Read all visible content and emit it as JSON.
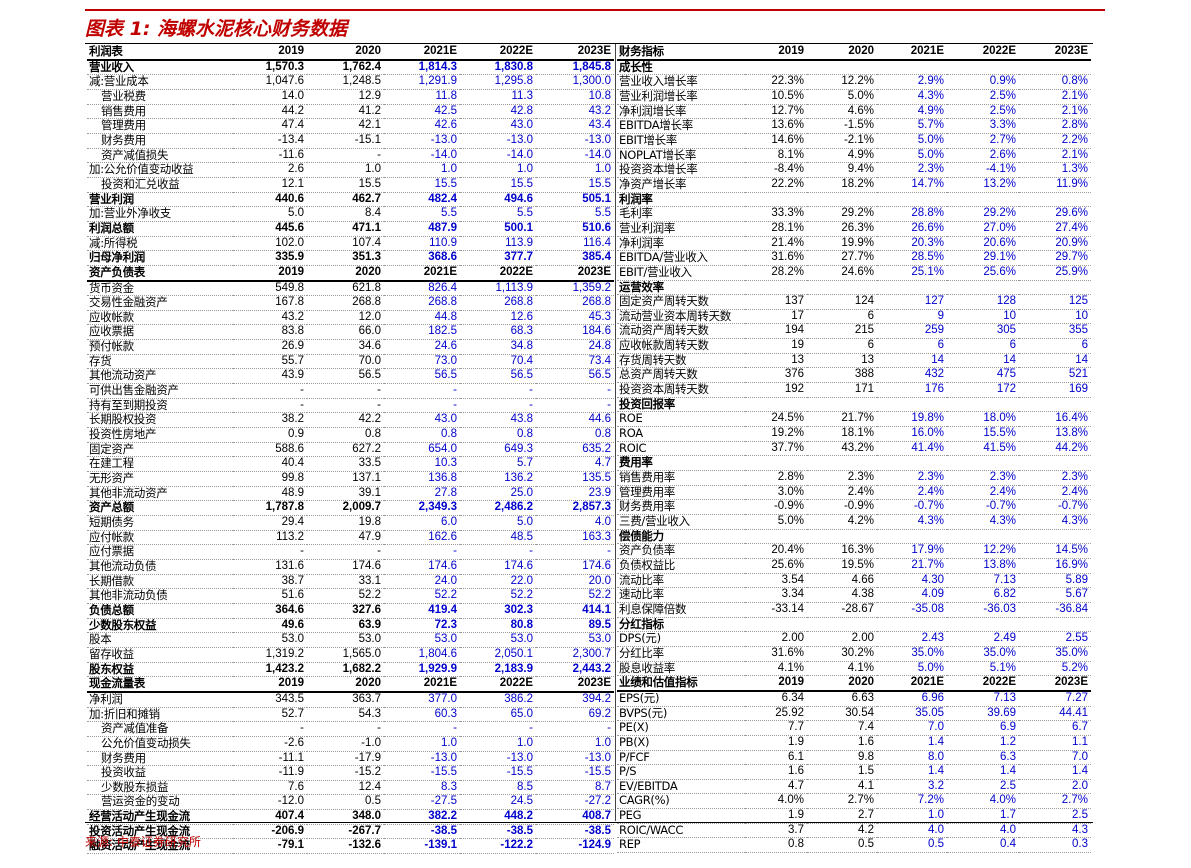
{
  "title": "图表 1: 海螺水泥核心财务数据",
  "source": "来源: 中泰证券研究所",
  "left_rows": [
    {
      "t": "hd",
      "c": [
        "利润表",
        "2019",
        "2020",
        "2021E",
        "2022E",
        "2023E"
      ]
    },
    {
      "t": "b",
      "c": [
        "营业收入",
        "1,570.3",
        "1,762.4",
        "1,814.3",
        "1,830.8",
        "1,845.8"
      ]
    },
    {
      "t": "",
      "c": [
        "减:营业成本",
        "1,047.6",
        "1,248.5",
        "1,291.9",
        "1,295.8",
        "1,300.0"
      ]
    },
    {
      "t": "ind",
      "c": [
        "营业税费",
        "14.0",
        "12.9",
        "11.8",
        "11.3",
        "10.8"
      ]
    },
    {
      "t": "ind",
      "c": [
        "销售费用",
        "44.2",
        "41.2",
        "42.5",
        "42.8",
        "43.2"
      ]
    },
    {
      "t": "ind",
      "c": [
        "管理费用",
        "47.4",
        "42.1",
        "42.6",
        "43.0",
        "43.4"
      ]
    },
    {
      "t": "ind",
      "c": [
        "财务费用",
        "-13.4",
        "-15.1",
        "-13.0",
        "-13.0",
        "-13.0"
      ]
    },
    {
      "t": "ind",
      "c": [
        "资产减值损失",
        "-11.6",
        "-",
        "-14.0",
        "-14.0",
        "-14.0"
      ]
    },
    {
      "t": "",
      "c": [
        "加:公允价值变动收益",
        "2.6",
        "1.0",
        "1.0",
        "1.0",
        "1.0"
      ]
    },
    {
      "t": "ind",
      "c": [
        "投资和汇兑收益",
        "12.1",
        "15.5",
        "15.5",
        "15.5",
        "15.5"
      ]
    },
    {
      "t": "b",
      "c": [
        "营业利润",
        "440.6",
        "462.7",
        "482.4",
        "494.6",
        "505.1"
      ]
    },
    {
      "t": "",
      "c": [
        "加:营业外净收支",
        "5.0",
        "8.4",
        "5.5",
        "5.5",
        "5.5"
      ]
    },
    {
      "t": "b",
      "c": [
        "利润总额",
        "445.6",
        "471.1",
        "487.9",
        "500.1",
        "510.6"
      ]
    },
    {
      "t": "",
      "c": [
        "减:所得税",
        "102.0",
        "107.4",
        "110.9",
        "113.9",
        "116.4"
      ]
    },
    {
      "t": "b",
      "c": [
        "归母净利润",
        "335.9",
        "351.3",
        "368.6",
        "377.7",
        "385.4"
      ]
    },
    {
      "t": "hd",
      "c": [
        "资产负债表",
        "2019",
        "2020",
        "2021E",
        "2022E",
        "2023E"
      ]
    },
    {
      "t": "",
      "c": [
        "货币资金",
        "549.8",
        "621.8",
        "826.4",
        "1,113.9",
        "1,359.2"
      ]
    },
    {
      "t": "",
      "c": [
        "交易性金融资产",
        "167.8",
        "268.8",
        "268.8",
        "268.8",
        "268.8"
      ]
    },
    {
      "t": "",
      "c": [
        "应收帐款",
        "43.2",
        "12.0",
        "44.8",
        "12.6",
        "45.3"
      ]
    },
    {
      "t": "",
      "c": [
        "应收票据",
        "83.8",
        "66.0",
        "182.5",
        "68.3",
        "184.6"
      ]
    },
    {
      "t": "",
      "c": [
        "预付帐款",
        "26.9",
        "34.6",
        "24.6",
        "34.8",
        "24.8"
      ]
    },
    {
      "t": "",
      "c": [
        "存货",
        "55.7",
        "70.0",
        "73.0",
        "70.4",
        "73.4"
      ]
    },
    {
      "t": "",
      "c": [
        "其他流动资产",
        "43.9",
        "56.5",
        "56.5",
        "56.5",
        "56.5"
      ]
    },
    {
      "t": "",
      "c": [
        "可供出售金融资产",
        "-",
        "-",
        "-",
        "-",
        "-"
      ]
    },
    {
      "t": "",
      "c": [
        "持有至到期投资",
        "-",
        "-",
        "-",
        "-",
        "-"
      ]
    },
    {
      "t": "",
      "c": [
        "长期股权投资",
        "38.2",
        "42.2",
        "43.0",
        "43.8",
        "44.6"
      ]
    },
    {
      "t": "",
      "c": [
        "投资性房地产",
        "0.9",
        "0.8",
        "0.8",
        "0.8",
        "0.8"
      ]
    },
    {
      "t": "",
      "c": [
        "固定资产",
        "588.6",
        "627.2",
        "654.0",
        "649.3",
        "635.2"
      ]
    },
    {
      "t": "",
      "c": [
        "在建工程",
        "40.4",
        "33.5",
        "10.3",
        "5.7",
        "4.7"
      ]
    },
    {
      "t": "",
      "c": [
        "无形资产",
        "99.8",
        "137.1",
        "136.8",
        "136.2",
        "135.5"
      ]
    },
    {
      "t": "",
      "c": [
        "其他非流动资产",
        "48.9",
        "39.1",
        "27.8",
        "25.0",
        "23.9"
      ]
    },
    {
      "t": "b",
      "c": [
        "资产总额",
        "1,787.8",
        "2,009.7",
        "2,349.3",
        "2,486.2",
        "2,857.3"
      ]
    },
    {
      "t": "",
      "c": [
        "短期债务",
        "29.4",
        "19.8",
        "6.0",
        "5.0",
        "4.0"
      ]
    },
    {
      "t": "",
      "c": [
        "应付帐款",
        "113.2",
        "47.9",
        "162.6",
        "48.5",
        "163.3"
      ]
    },
    {
      "t": "",
      "c": [
        "应付票据",
        "-",
        "-",
        "-",
        "-",
        "-"
      ]
    },
    {
      "t": "",
      "c": [
        "其他流动负债",
        "131.6",
        "174.6",
        "174.6",
        "174.6",
        "174.6"
      ]
    },
    {
      "t": "",
      "c": [
        "长期借款",
        "38.7",
        "33.1",
        "24.0",
        "22.0",
        "20.0"
      ]
    },
    {
      "t": "",
      "c": [
        "其他非流动负债",
        "51.6",
        "52.2",
        "52.2",
        "52.2",
        "52.2"
      ]
    },
    {
      "t": "b",
      "c": [
        "负债总额",
        "364.6",
        "327.6",
        "419.4",
        "302.3",
        "414.1"
      ]
    },
    {
      "t": "b",
      "c": [
        "少数股东权益",
        "49.6",
        "63.9",
        "72.3",
        "80.8",
        "89.5"
      ]
    },
    {
      "t": "",
      "c": [
        "股本",
        "53.0",
        "53.0",
        "53.0",
        "53.0",
        "53.0"
      ]
    },
    {
      "t": "",
      "c": [
        "留存收益",
        "1,319.2",
        "1,565.0",
        "1,804.6",
        "2,050.1",
        "2,300.7"
      ]
    },
    {
      "t": "b",
      "c": [
        "股东权益",
        "1,423.2",
        "1,682.2",
        "1,929.9",
        "2,183.9",
        "2,443.2"
      ]
    },
    {
      "t": "hd",
      "c": [
        "现金流量表",
        "2019",
        "2020",
        "2021E",
        "2022E",
        "2023E"
      ]
    },
    {
      "t": "",
      "c": [
        "净利润",
        "343.5",
        "363.7",
        "377.0",
        "386.2",
        "394.2"
      ]
    },
    {
      "t": "",
      "c": [
        "加:折旧和摊销",
        "52.7",
        "54.3",
        "60.3",
        "65.0",
        "69.2"
      ]
    },
    {
      "t": "ind",
      "c": [
        "资产减值准备",
        "-",
        "-",
        "-",
        "-",
        "-"
      ]
    },
    {
      "t": "ind",
      "c": [
        "公允价值变动损失",
        "-2.6",
        "-1.0",
        "1.0",
        "1.0",
        "1.0"
      ]
    },
    {
      "t": "ind",
      "c": [
        "财务费用",
        "-11.1",
        "-17.9",
        "-13.0",
        "-13.0",
        "-13.0"
      ]
    },
    {
      "t": "ind",
      "c": [
        "投资收益",
        "-11.9",
        "-15.2",
        "-15.5",
        "-15.5",
        "-15.5"
      ]
    },
    {
      "t": "ind",
      "c": [
        "少数股东损益",
        "7.6",
        "12.4",
        "8.3",
        "8.5",
        "8.7"
      ]
    },
    {
      "t": "ind",
      "c": [
        "营运资金的变动",
        "-12.0",
        "0.5",
        "-27.5",
        "24.5",
        "-27.2"
      ]
    },
    {
      "t": "b",
      "c": [
        "经营活动产生现金流",
        "407.4",
        "348.0",
        "382.2",
        "448.2",
        "408.7"
      ]
    },
    {
      "t": "b",
      "c": [
        "投资活动产生现金流",
        "-206.9",
        "-267.7",
        "-38.5",
        "-38.5",
        "-38.5"
      ]
    },
    {
      "t": "b",
      "c": [
        "融资活动产生现金流",
        "-79.1",
        "-132.6",
        "-139.1",
        "-122.2",
        "-124.9"
      ]
    }
  ],
  "right_rows": [
    {
      "t": "hd",
      "c": [
        "财务指标",
        "2019",
        "2020",
        "2021E",
        "2022E",
        "2023E"
      ]
    },
    {
      "t": "sec",
      "c": [
        "成长性",
        "",
        "",
        "",
        "",
        ""
      ]
    },
    {
      "t": "",
      "c": [
        "营业收入增长率",
        "22.3%",
        "12.2%",
        "2.9%",
        "0.9%",
        "0.8%"
      ]
    },
    {
      "t": "",
      "c": [
        "营业利润增长率",
        "10.5%",
        "5.0%",
        "4.3%",
        "2.5%",
        "2.1%"
      ]
    },
    {
      "t": "",
      "c": [
        "净利润增长率",
        "12.7%",
        "4.6%",
        "4.9%",
        "2.5%",
        "2.1%"
      ]
    },
    {
      "t": "",
      "c": [
        "EBITDA增长率",
        "13.6%",
        "-1.5%",
        "5.7%",
        "3.3%",
        "2.8%"
      ]
    },
    {
      "t": "",
      "c": [
        "EBIT增长率",
        "14.6%",
        "-2.1%",
        "5.0%",
        "2.7%",
        "2.2%"
      ]
    },
    {
      "t": "",
      "c": [
        "NOPLAT增长率",
        "8.1%",
        "4.9%",
        "5.0%",
        "2.6%",
        "2.1%"
      ]
    },
    {
      "t": "",
      "c": [
        "投资资本增长率",
        "-8.4%",
        "9.4%",
        "2.3%",
        "-4.1%",
        "1.3%"
      ]
    },
    {
      "t": "",
      "c": [
        "净资产增长率",
        "22.2%",
        "18.2%",
        "14.7%",
        "13.2%",
        "11.9%"
      ]
    },
    {
      "t": "sec",
      "c": [
        "利润率",
        "",
        "",
        "",
        "",
        ""
      ]
    },
    {
      "t": "",
      "c": [
        "毛利率",
        "33.3%",
        "29.2%",
        "28.8%",
        "29.2%",
        "29.6%"
      ]
    },
    {
      "t": "",
      "c": [
        "营业利润率",
        "28.1%",
        "26.3%",
        "26.6%",
        "27.0%",
        "27.4%"
      ]
    },
    {
      "t": "",
      "c": [
        "净利润率",
        "21.4%",
        "19.9%",
        "20.3%",
        "20.6%",
        "20.9%"
      ]
    },
    {
      "t": "",
      "c": [
        "EBITDA/营业收入",
        "31.6%",
        "27.7%",
        "28.5%",
        "29.1%",
        "29.7%"
      ]
    },
    {
      "t": "",
      "c": [
        "EBIT/营业收入",
        "28.2%",
        "24.6%",
        "25.1%",
        "25.6%",
        "25.9%"
      ]
    },
    {
      "t": "sec",
      "c": [
        "运营效率",
        "",
        "",
        "",
        "",
        ""
      ]
    },
    {
      "t": "",
      "c": [
        "固定资产周转天数",
        "137",
        "124",
        "127",
        "128",
        "125"
      ]
    },
    {
      "t": "",
      "c": [
        "流动营业资本周转天数",
        "17",
        "6",
        "9",
        "10",
        "10"
      ]
    },
    {
      "t": "",
      "c": [
        "流动资产周转天数",
        "194",
        "215",
        "259",
        "305",
        "355"
      ]
    },
    {
      "t": "",
      "c": [
        "应收帐款周转天数",
        "19",
        "6",
        "6",
        "6",
        "6"
      ]
    },
    {
      "t": "",
      "c": [
        "存货周转天数",
        "13",
        "13",
        "14",
        "14",
        "14"
      ]
    },
    {
      "t": "",
      "c": [
        "总资产周转天数",
        "376",
        "388",
        "432",
        "475",
        "521"
      ]
    },
    {
      "t": "",
      "c": [
        "投资资本周转天数",
        "192",
        "171",
        "176",
        "172",
        "169"
      ]
    },
    {
      "t": "sec",
      "c": [
        "投资回报率",
        "",
        "",
        "",
        "",
        ""
      ]
    },
    {
      "t": "",
      "c": [
        "ROE",
        "24.5%",
        "21.7%",
        "19.8%",
        "18.0%",
        "16.4%"
      ]
    },
    {
      "t": "",
      "c": [
        "ROA",
        "19.2%",
        "18.1%",
        "16.0%",
        "15.5%",
        "13.8%"
      ]
    },
    {
      "t": "",
      "c": [
        "ROIC",
        "37.7%",
        "43.2%",
        "41.4%",
        "41.5%",
        "44.2%"
      ]
    },
    {
      "t": "sec",
      "c": [
        "费用率",
        "",
        "",
        "",
        "",
        ""
      ]
    },
    {
      "t": "",
      "c": [
        "销售费用率",
        "2.8%",
        "2.3%",
        "2.3%",
        "2.3%",
        "2.3%"
      ]
    },
    {
      "t": "",
      "c": [
        "管理费用率",
        "3.0%",
        "2.4%",
        "2.4%",
        "2.4%",
        "2.4%"
      ]
    },
    {
      "t": "",
      "c": [
        "财务费用率",
        "-0.9%",
        "-0.9%",
        "-0.7%",
        "-0.7%",
        "-0.7%"
      ]
    },
    {
      "t": "",
      "c": [
        "三费/营业收入",
        "5.0%",
        "4.2%",
        "4.3%",
        "4.3%",
        "4.3%"
      ]
    },
    {
      "t": "sec",
      "c": [
        "偿债能力",
        "",
        "",
        "",
        "",
        ""
      ]
    },
    {
      "t": "",
      "c": [
        "资产负债率",
        "20.4%",
        "16.3%",
        "17.9%",
        "12.2%",
        "14.5%"
      ]
    },
    {
      "t": "",
      "c": [
        "负债权益比",
        "25.6%",
        "19.5%",
        "21.7%",
        "13.8%",
        "16.9%"
      ]
    },
    {
      "t": "",
      "c": [
        "流动比率",
        "3.54",
        "4.66",
        "4.30",
        "7.13",
        "5.89"
      ]
    },
    {
      "t": "",
      "c": [
        "速动比率",
        "3.34",
        "4.38",
        "4.09",
        "6.82",
        "5.67"
      ]
    },
    {
      "t": "",
      "c": [
        "利息保障倍数",
        "-33.14",
        "-28.67",
        "-35.08",
        "-36.03",
        "-36.84"
      ]
    },
    {
      "t": "sec",
      "c": [
        "分红指标",
        "",
        "",
        "",
        "",
        ""
      ]
    },
    {
      "t": "",
      "c": [
        "DPS(元)",
        "2.00",
        "2.00",
        "2.43",
        "2.49",
        "2.55"
      ]
    },
    {
      "t": "",
      "c": [
        "分红比率",
        "31.6%",
        "30.2%",
        "35.0%",
        "35.0%",
        "35.0%"
      ]
    },
    {
      "t": "",
      "c": [
        "股息收益率",
        "4.1%",
        "4.1%",
        "5.0%",
        "5.1%",
        "5.2%"
      ]
    },
    {
      "t": "hd",
      "c": [
        "业绩和估值指标",
        "2019",
        "2020",
        "2021E",
        "2022E",
        "2023E"
      ]
    },
    {
      "t": "",
      "c": [
        "EPS(元)",
        "6.34",
        "6.63",
        "6.96",
        "7.13",
        "7.27"
      ]
    },
    {
      "t": "",
      "c": [
        "BVPS(元)",
        "25.92",
        "30.54",
        "35.05",
        "39.69",
        "44.41"
      ]
    },
    {
      "t": "",
      "c": [
        "PE(X)",
        "7.7",
        "7.4",
        "7.0",
        "6.9",
        "6.7"
      ]
    },
    {
      "t": "",
      "c": [
        "PB(X)",
        "1.9",
        "1.6",
        "1.4",
        "1.2",
        "1.1"
      ]
    },
    {
      "t": "",
      "c": [
        "P/FCF",
        "6.1",
        "9.8",
        "8.0",
        "6.3",
        "7.0"
      ]
    },
    {
      "t": "",
      "c": [
        "P/S",
        "1.6",
        "1.5",
        "1.4",
        "1.4",
        "1.4"
      ]
    },
    {
      "t": "",
      "c": [
        "EV/EBITDA",
        "4.7",
        "4.1",
        "3.2",
        "2.5",
        "2.0"
      ]
    },
    {
      "t": "",
      "c": [
        "CAGR(%)",
        "4.0%",
        "2.7%",
        "7.2%",
        "4.0%",
        "2.7%"
      ]
    },
    {
      "t": "",
      "c": [
        "PEG",
        "1.9",
        "2.7",
        "1.0",
        "1.7",
        "2.5"
      ]
    },
    {
      "t": "",
      "c": [
        "ROIC/WACC",
        "3.7",
        "4.2",
        "4.0",
        "4.0",
        "4.3"
      ]
    },
    {
      "t": "",
      "c": [
        "REP",
        "0.8",
        "0.5",
        "0.5",
        "0.4",
        "0.3"
      ]
    }
  ]
}
